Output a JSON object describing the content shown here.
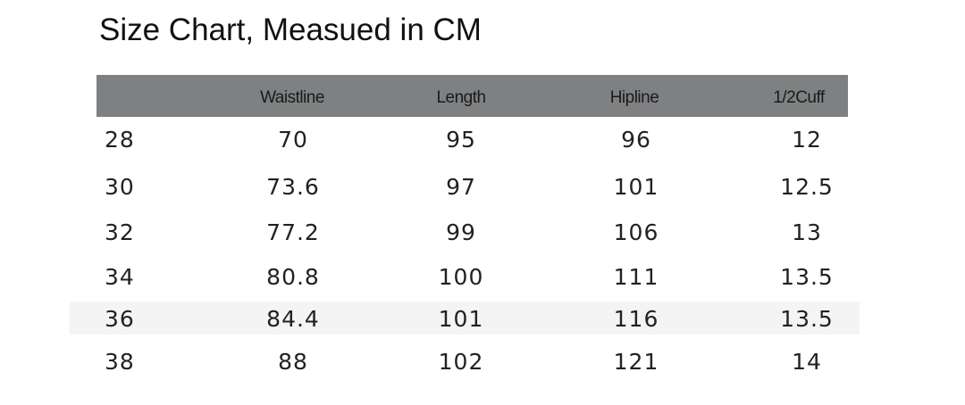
{
  "title": "Size Chart, Measued in CM",
  "header": {
    "columns": [
      "",
      "Waistline",
      "Length",
      "Hipline",
      "1/2Cuff"
    ],
    "background": "#7f8082"
  },
  "rows": [
    [
      "28",
      "70",
      "95",
      "96",
      "12"
    ],
    [
      "30",
      "73.6",
      "97",
      "101",
      "12.5"
    ],
    [
      "32",
      "77.2",
      "99",
      "106",
      "13"
    ],
    [
      "34",
      "80.8",
      "100",
      "111",
      "13.5"
    ],
    [
      "36",
      "84.4",
      "101",
      "116",
      "13.5"
    ],
    [
      "38",
      "88",
      "102",
      "121",
      "14"
    ]
  ]
}
